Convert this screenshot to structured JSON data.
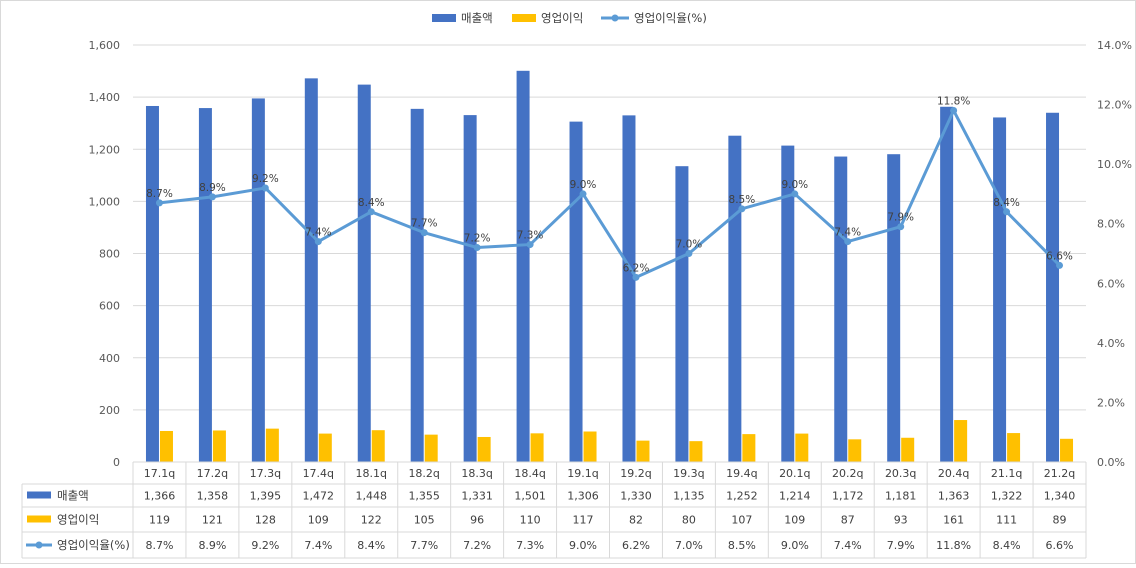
{
  "chart_data": {
    "type": "bar",
    "categories": [
      "17.1q",
      "17.2q",
      "17.3q",
      "17.4q",
      "18.1q",
      "18.2q",
      "18.3q",
      "18.4q",
      "19.1q",
      "19.2q",
      "19.3q",
      "19.4q",
      "20.1q",
      "20.2q",
      "20.3q",
      "20.4q",
      "21.1q",
      "21.2q"
    ],
    "series": [
      {
        "name": "매출액",
        "type": "bar",
        "axis": "left",
        "color": "#4472C4",
        "values": [
          1366,
          1358,
          1395,
          1472,
          1448,
          1355,
          1331,
          1501,
          1306,
          1330,
          1135,
          1252,
          1214,
          1172,
          1181,
          1363,
          1322,
          1340
        ],
        "table_labels": [
          "1,366",
          "1,358",
          "1,395",
          "1,472",
          "1,448",
          "1,355",
          "1,331",
          "1,501",
          "1,306",
          "1,330",
          "1,135",
          "1,252",
          "1,214",
          "1,172",
          "1,181",
          "1,363",
          "1,322",
          "1,340"
        ]
      },
      {
        "name": "영업이익",
        "type": "bar",
        "axis": "left",
        "color": "#FFC000",
        "values": [
          119,
          121,
          128,
          109,
          122,
          105,
          96,
          110,
          117,
          82,
          80,
          107,
          109,
          87,
          93,
          161,
          111,
          89
        ],
        "table_labels": [
          "119",
          "121",
          "128",
          "109",
          "122",
          "105",
          "96",
          "110",
          "117",
          "82",
          "80",
          "107",
          "109",
          "87",
          "93",
          "161",
          "111",
          "89"
        ]
      },
      {
        "name": "영업이익율(%)",
        "type": "line",
        "axis": "right",
        "color": "#5B9BD5",
        "values": [
          8.7,
          8.9,
          9.2,
          7.4,
          8.4,
          7.7,
          7.2,
          7.3,
          9.0,
          6.2,
          7.0,
          8.5,
          9.0,
          7.4,
          7.9,
          11.8,
          8.4,
          6.6
        ],
        "table_labels": [
          "8.7%",
          "8.9%",
          "9.2%",
          "7.4%",
          "8.4%",
          "7.7%",
          "7.2%",
          "7.3%",
          "9.0%",
          "6.2%",
          "7.0%",
          "8.5%",
          "9.0%",
          "7.4%",
          "7.9%",
          "11.8%",
          "8.4%",
          "6.6%"
        ]
      }
    ],
    "y_left": {
      "min": 0,
      "max": 1600,
      "ticks": [
        0,
        200,
        400,
        600,
        800,
        1000,
        1200,
        1400,
        1600
      ],
      "tick_labels": [
        "0",
        "200",
        "400",
        "600",
        "800",
        "1,000",
        "1,200",
        "1,400",
        "1,600"
      ]
    },
    "y_right": {
      "min": 0,
      "max": 14,
      "ticks": [
        0,
        2,
        4,
        6,
        8,
        10,
        12,
        14
      ],
      "tick_labels": [
        "0.0%",
        "2.0%",
        "4.0%",
        "6.0%",
        "8.0%",
        "10.0%",
        "12.0%",
        "14.0%"
      ]
    },
    "grid": true,
    "legend_position": "top",
    "data_table": true
  }
}
